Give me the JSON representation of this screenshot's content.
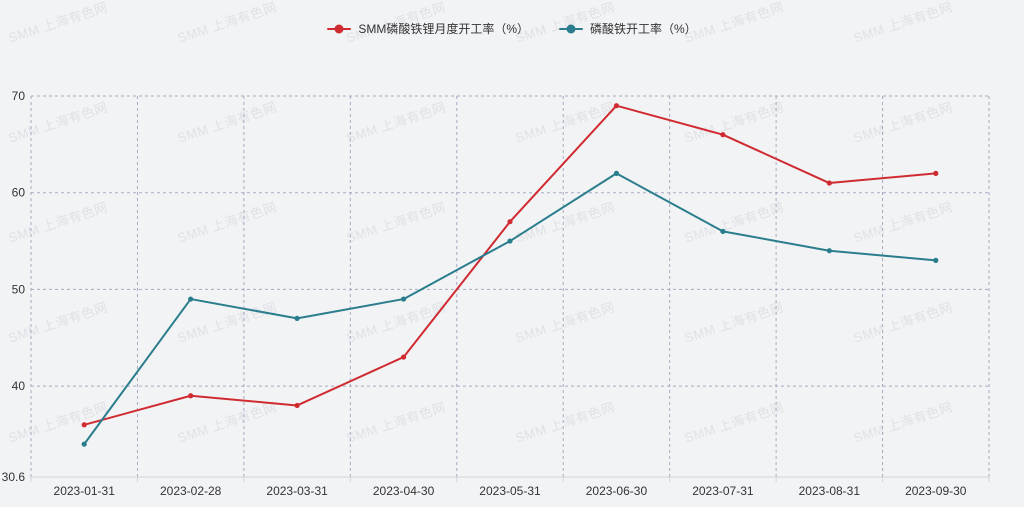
{
  "watermark": {
    "text": "SMM 上海有色网"
  },
  "chart_data": {
    "type": "line",
    "title": "",
    "xlabel": "",
    "ylabel": "",
    "legend_position": "top",
    "grid": "dashed",
    "categories": [
      "2023-01-31",
      "2023-02-28",
      "2023-03-31",
      "2023-04-30",
      "2023-05-31",
      "2023-06-30",
      "2023-07-31",
      "2023-08-31",
      "2023-09-30"
    ],
    "series": [
      {
        "name": "SMM磷酸铁锂月度开工率（%）",
        "color": "#cf2b31",
        "values": [
          36,
          39,
          38,
          43,
          57,
          69,
          66,
          61,
          62
        ]
      },
      {
        "name": "磷酸铁开工率（%）",
        "color": "#2a7d8c",
        "values": [
          34,
          49,
          47,
          49,
          55,
          62,
          56,
          54,
          53
        ]
      }
    ],
    "ylim": [
      30.6,
      70
    ],
    "yticks": [
      30.6,
      40,
      50,
      60,
      70
    ],
    "ytick_labels": [
      "30.6",
      "40",
      "50",
      "60",
      "70"
    ]
  },
  "colors": {
    "background": "#f2f3f5",
    "gridline": "#a6abc0",
    "axis_line": "#d2d4da",
    "axis_label": "#333333",
    "watermark": "#dfe1e6"
  }
}
